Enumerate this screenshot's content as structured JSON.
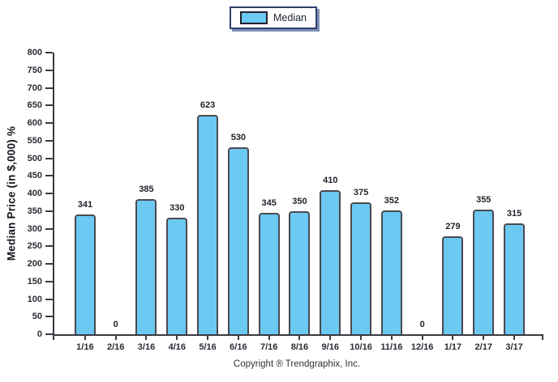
{
  "legend": {
    "label": "Median",
    "swatch_color": "#6bc9f2"
  },
  "y_axis": {
    "title": "Median Price (in $,000) %",
    "ticks": [
      800,
      750,
      700,
      650,
      600,
      550,
      500,
      450,
      400,
      350,
      300,
      250,
      200,
      150,
      100,
      50,
      0
    ]
  },
  "footer": {
    "copyright": "Copyright ® Trendgraphix, Inc."
  },
  "chart_data": {
    "type": "bar",
    "title": "",
    "xlabel": "",
    "ylabel": "Median Price (in $,000) %",
    "categories": [
      "1/16",
      "2/16",
      "3/16",
      "4/16",
      "5/16",
      "6/16",
      "7/16",
      "8/16",
      "9/16",
      "10/16",
      "11/16",
      "12/16",
      "1/17",
      "2/17",
      "3/17"
    ],
    "series": [
      {
        "name": "Median",
        "values": [
          341,
          0,
          385,
          330,
          623,
          530,
          345,
          350,
          410,
          375,
          352,
          0,
          279,
          355,
          315
        ]
      }
    ],
    "ylim": [
      0,
      800
    ],
    "ytick_step": 50,
    "grid": false,
    "legend_position": "top-center",
    "data_labels": true,
    "colors": {
      "bar_fill": "#6bc9f2",
      "bar_border": "#4a4a52",
      "axis": "#3a3a42",
      "label_text": "#22222c"
    }
  }
}
